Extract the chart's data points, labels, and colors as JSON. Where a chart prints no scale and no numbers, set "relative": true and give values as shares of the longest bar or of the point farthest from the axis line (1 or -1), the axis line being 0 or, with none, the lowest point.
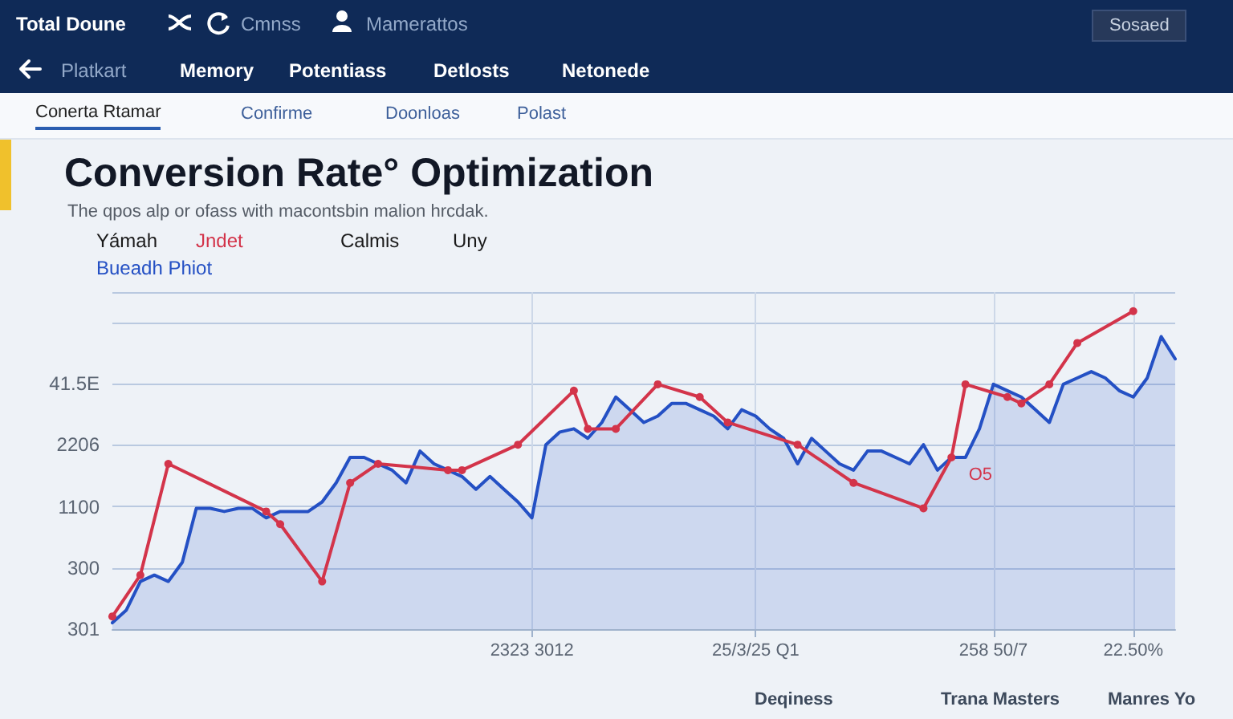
{
  "chart_data": {
    "type": "line",
    "title": "Conversion Rate° Optimization",
    "subtitle": "The qpos alp or ofass with macontsbin malion hrcdak.",
    "annotations": [
      "Total Doune",
      "Cmnss",
      "Mamerattos",
      "Sosaed",
      "Platkart",
      "Memory",
      "Potentiass",
      "Detlosts",
      "Netonede",
      "Conerta Rtamar",
      "Confirme",
      "Doonloas",
      "Polast",
      "Yámah",
      "Calmis",
      "Uny",
      "Deqiness",
      "Trana Masters",
      "Manres Yo",
      "301",
      "300",
      "1100",
      "2206",
      "41.5E",
      "O5"
    ],
    "relative": true,
    "categories": [
      null,
      null,
      null,
      null,
      null,
      null,
      null,
      null,
      null,
      null,
      null,
      null,
      null,
      null,
      null,
      null,
      null,
      null,
      null,
      null,
      null,
      null,
      null,
      null,
      null,
      null,
      null,
      null,
      null,
      null,
      "2323 3012",
      null,
      null,
      null,
      null,
      null,
      null,
      null,
      null,
      null,
      null,
      null,
      null,
      null,
      null,
      null,
      "25/3/25 Q1",
      null,
      null,
      null,
      null,
      null,
      null,
      null,
      null,
      null,
      null,
      null,
      null,
      null,
      null,
      null,
      null,
      "258 50/7",
      null,
      null,
      null,
      null,
      null,
      null,
      null,
      null,
      null,
      "22.50%",
      null,
      null,
      null
    ],
    "series": [
      {
        "name": "Bueadh Phiot",
        "type": "area",
        "color": "#2450c4",
        "marker": "none",
        "values": [
          0.02,
          0.06,
          0.15,
          0.17,
          0.15,
          0.21,
          0.38,
          0.38,
          0.37,
          0.38,
          0.38,
          0.35,
          0.37,
          0.37,
          0.37,
          0.4,
          0.46,
          0.54,
          0.54,
          0.52,
          0.5,
          0.46,
          0.56,
          0.52,
          0.5,
          0.48,
          0.44,
          0.48,
          0.44,
          0.4,
          0.35,
          0.58,
          0.62,
          0.63,
          0.6,
          0.65,
          0.73,
          0.69,
          0.65,
          0.67,
          0.71,
          0.71,
          0.69,
          0.67,
          0.63,
          0.69,
          0.67,
          0.63,
          0.6,
          0.52,
          0.6,
          0.56,
          0.52,
          0.5,
          0.56,
          0.56,
          0.54,
          0.52,
          0.58,
          0.5,
          0.54,
          0.54,
          0.63,
          0.77,
          0.75,
          0.73,
          0.69,
          0.65,
          0.77,
          0.79,
          0.81,
          0.79,
          0.75,
          0.73,
          0.79,
          0.92,
          0.85
        ]
      },
      {
        "name": "Jndet",
        "color": "#d3344a",
        "marker": "circle",
        "values": [
          0.04,
          null,
          0.17,
          null,
          0.52,
          null,
          null,
          null,
          null,
          null,
          null,
          0.37,
          0.33,
          null,
          null,
          0.15,
          null,
          0.46,
          null,
          0.52,
          null,
          null,
          null,
          null,
          0.5,
          0.5,
          null,
          null,
          null,
          0.58,
          null,
          null,
          null,
          0.75,
          0.63,
          null,
          0.63,
          null,
          null,
          0.77,
          null,
          null,
          0.73,
          null,
          0.65,
          null,
          null,
          null,
          null,
          0.58,
          null,
          null,
          null,
          0.46,
          null,
          null,
          null,
          null,
          0.38,
          null,
          0.54,
          0.77,
          null,
          null,
          0.73,
          0.71,
          null,
          0.77,
          null,
          0.9,
          null,
          null,
          null,
          1.0,
          null,
          null,
          null
        ]
      }
    ],
    "grid": true,
    "legend": "top left",
    "line_style": "solid"
  }
}
